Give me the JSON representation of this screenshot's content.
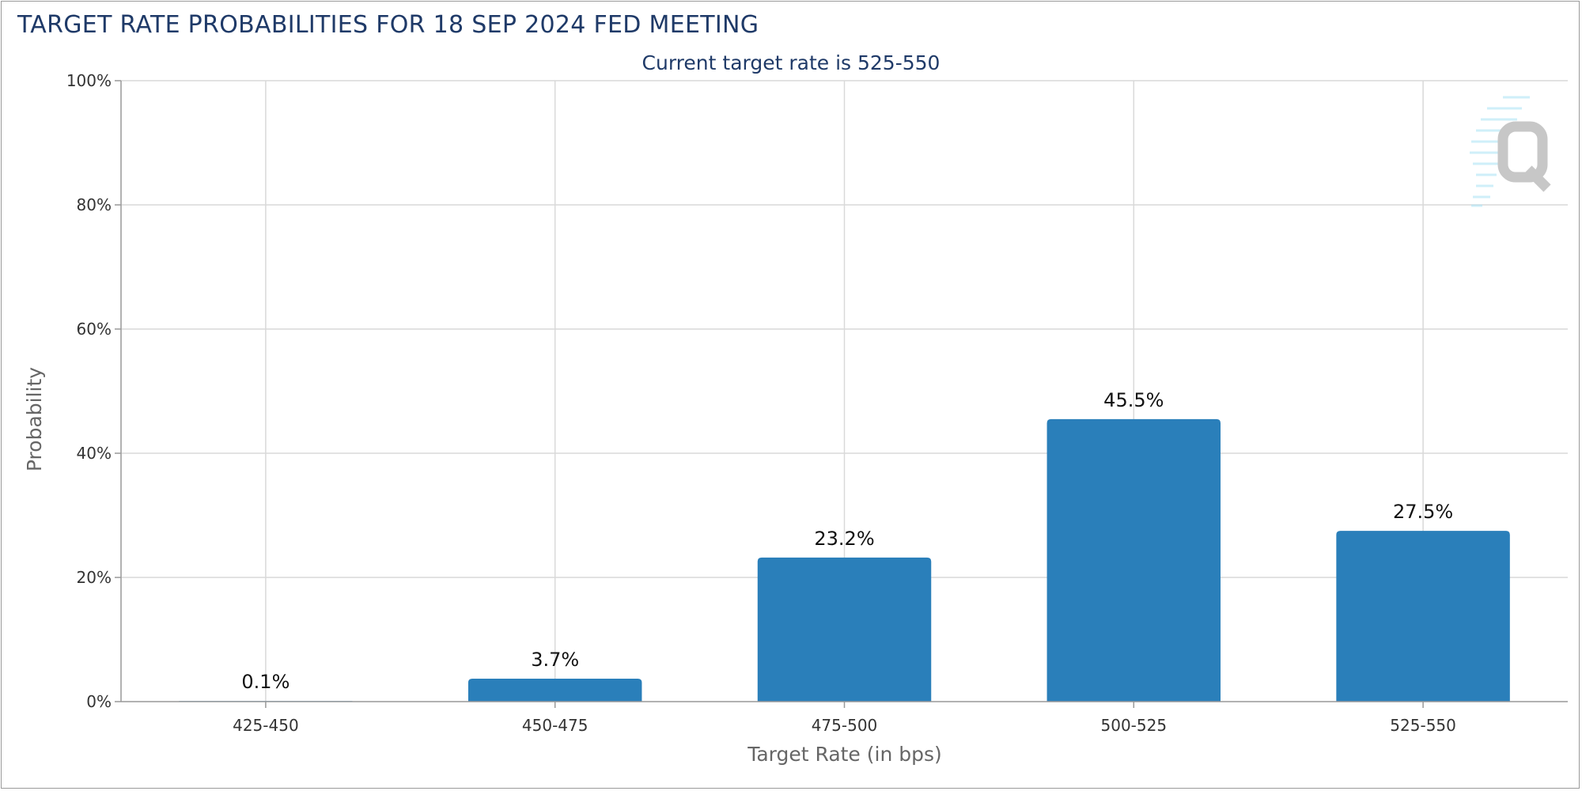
{
  "header": {
    "title": "TARGET RATE PROBABILITIES FOR 18 SEP 2024 FED MEETING"
  },
  "colors": {
    "bar": "#2a7fba",
    "title": "#1f3a68"
  },
  "icons": {
    "watermark": "quikstrike-q-logo-icon"
  },
  "chart_data": {
    "type": "bar",
    "title": "TARGET RATE PROBABILITIES FOR 18 SEP 2024 FED MEETING",
    "subtitle": "Current target rate is 525-550",
    "xlabel": "Target Rate (in bps)",
    "ylabel": "Probability",
    "categories": [
      "425-450",
      "450-475",
      "475-500",
      "500-525",
      "525-550"
    ],
    "values": [
      0.1,
      3.7,
      23.2,
      45.5,
      27.5
    ],
    "data_labels": [
      "0.1%",
      "3.7%",
      "23.2%",
      "45.5%",
      "27.5%"
    ],
    "ylim": [
      0,
      100
    ],
    "yticks": [
      0,
      20,
      40,
      60,
      80,
      100
    ],
    "ytick_labels": [
      "0%",
      "20%",
      "40%",
      "60%",
      "80%",
      "100%"
    ],
    "grid": true,
    "legend": "none"
  }
}
